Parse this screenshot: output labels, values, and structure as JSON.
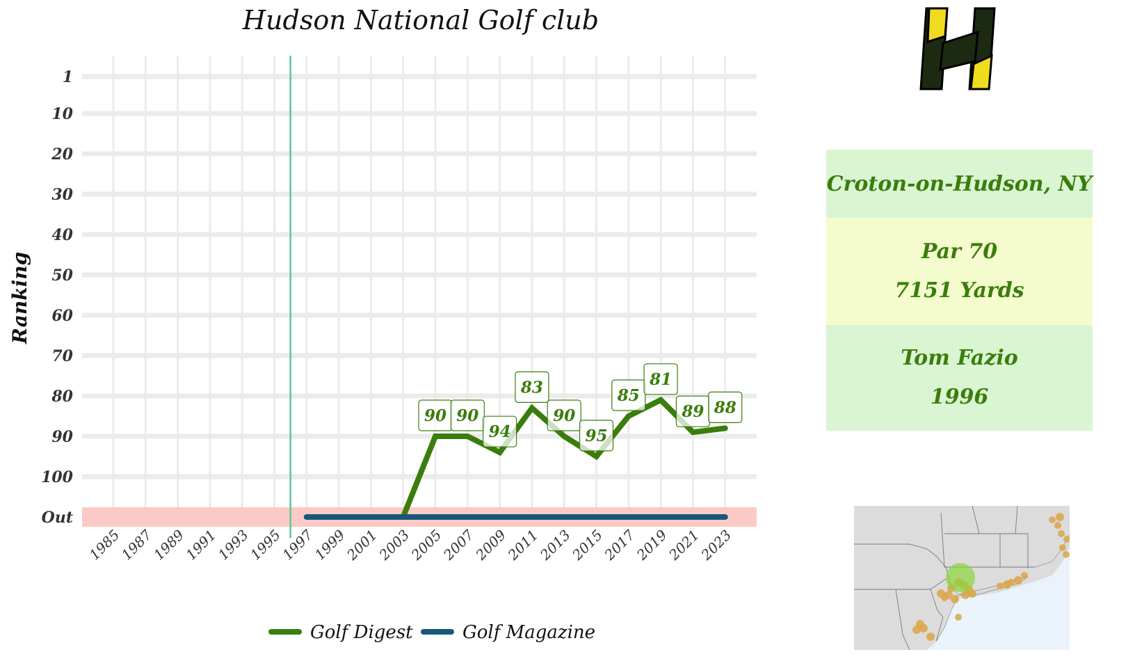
{
  "chart_data": {
    "type": "line",
    "title": "Hudson National Golf club",
    "ylabel": "Ranking",
    "xlabel": "",
    "y_ticks": [
      {
        "label": "1",
        "value": 1
      },
      {
        "label": "10",
        "value": 10
      },
      {
        "label": "20",
        "value": 20
      },
      {
        "label": "30",
        "value": 30
      },
      {
        "label": "40",
        "value": 40
      },
      {
        "label": "50",
        "value": 50
      },
      {
        "label": "60",
        "value": 60
      },
      {
        "label": "70",
        "value": 70
      },
      {
        "label": "80",
        "value": 80
      },
      {
        "label": "90",
        "value": 90
      },
      {
        "label": "100",
        "value": 100
      },
      {
        "label": "Out",
        "value": 110
      }
    ],
    "y_reversed": true,
    "y_range": [
      1,
      110
    ],
    "x_ticks": [
      "1985",
      "1987",
      "1989",
      "1991",
      "1993",
      "1995",
      "1997",
      "1999",
      "2001",
      "2003",
      "2005",
      "2007",
      "2009",
      "2011",
      "2013",
      "2015",
      "2017",
      "2019",
      "2021",
      "2023"
    ],
    "x_range": [
      1984,
      2024.5
    ],
    "out_band": {
      "label": "Out",
      "color": "#fccac6"
    },
    "vline": {
      "x": 1996,
      "color": "#5fc49a"
    },
    "grid": true,
    "legend_position": "bottom",
    "series": [
      {
        "name": "Golf Digest",
        "color": "#3a7d0c",
        "points": [
          {
            "x": 2003,
            "y": 110
          },
          {
            "x": 2005,
            "y": 90,
            "label": "90"
          },
          {
            "x": 2007,
            "y": 90,
            "label": "90"
          },
          {
            "x": 2009,
            "y": 94,
            "label": "94"
          },
          {
            "x": 2011,
            "y": 83,
            "label": "83"
          },
          {
            "x": 2013,
            "y": 90,
            "label": "90"
          },
          {
            "x": 2015,
            "y": 95,
            "label": "95"
          },
          {
            "x": 2017,
            "y": 85,
            "label": "85"
          },
          {
            "x": 2019,
            "y": 81,
            "label": "81"
          },
          {
            "x": 2021,
            "y": 89,
            "label": "89"
          },
          {
            "x": 2023,
            "y": 88,
            "label": "88"
          }
        ]
      },
      {
        "name": "Golf Magazine",
        "color": "#17577a",
        "points": [
          {
            "x": 1997,
            "y": 110
          },
          {
            "x": 2023,
            "y": 110
          }
        ]
      }
    ]
  },
  "info": {
    "location": "Croton-on-Hudson, NY",
    "par": "Par 70",
    "yards": "7151 Yards",
    "designer": "Tom Fazio",
    "year": "1996"
  },
  "colors": {
    "logo_dark": "#1c2a12",
    "logo_yellow": "#f0dc1e",
    "map_land": "#dcdcdc",
    "map_water": "#eaf3fb",
    "map_dot": "#d9a647",
    "map_highlight": "#8cd43c"
  },
  "icons": {
    "logo": "hudson-national-h-logo",
    "map": "northeast-us-map"
  }
}
